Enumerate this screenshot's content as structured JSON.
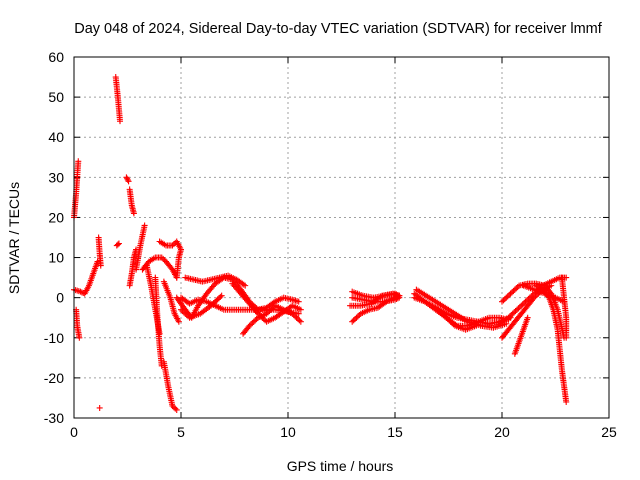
{
  "chart_data": {
    "type": "scatter",
    "title": "Day 048 of 2024, Sidereal Day-to-day VTEC variation (SDTVAR) for receiver lmmf",
    "xlabel": "GPS time / hours",
    "ylabel": "SDTVAR / TECUs",
    "xlim": [
      0,
      25
    ],
    "ylim": [
      -30,
      60
    ],
    "xticks": [
      0,
      5,
      10,
      15,
      20,
      25
    ],
    "yticks": [
      -30,
      -20,
      -10,
      0,
      10,
      20,
      30,
      40,
      50,
      60
    ],
    "grid": true,
    "marker": "+",
    "color": "#ff0000",
    "segments": [
      [
        [
          0.0,
          20
        ],
        [
          0.1,
          26
        ],
        [
          0.2,
          34
        ]
      ],
      [
        [
          0.0,
          2
        ],
        [
          0.3,
          1.5
        ],
        [
          0.5,
          1
        ],
        [
          0.7,
          3
        ],
        [
          0.9,
          6
        ],
        [
          1.1,
          9
        ]
      ],
      [
        [
          0.1,
          -3
        ],
        [
          0.15,
          -7
        ],
        [
          0.25,
          -10
        ]
      ],
      [
        [
          1.15,
          15
        ],
        [
          1.2,
          11
        ],
        [
          1.25,
          8
        ]
      ],
      [
        [
          1.2,
          -27.5
        ]
      ],
      [
        [
          1.95,
          55
        ],
        [
          2.05,
          50
        ],
        [
          2.15,
          44
        ]
      ],
      [
        [
          2.0,
          13
        ],
        [
          2.1,
          13.5
        ]
      ],
      [
        [
          2.45,
          30
        ],
        [
          2.55,
          29
        ]
      ],
      [
        [
          2.6,
          27
        ],
        [
          2.7,
          23
        ],
        [
          2.8,
          21
        ]
      ],
      [
        [
          2.6,
          3
        ],
        [
          2.7,
          6
        ],
        [
          2.8,
          10
        ],
        [
          2.9,
          12
        ]
      ],
      [
        [
          2.9,
          7
        ],
        [
          3.1,
          13
        ],
        [
          3.3,
          18
        ]
      ],
      [
        [
          3.2,
          7
        ],
        [
          3.5,
          9
        ],
        [
          3.8,
          10
        ],
        [
          4.1,
          10
        ],
        [
          4.3,
          9
        ],
        [
          4.6,
          7
        ],
        [
          4.8,
          5
        ]
      ],
      [
        [
          3.8,
          5
        ],
        [
          3.9,
          -5
        ],
        [
          4.0,
          -12
        ],
        [
          4.1,
          -17
        ]
      ],
      [
        [
          4.2,
          -16
        ],
        [
          4.4,
          -22
        ],
        [
          4.6,
          -27
        ],
        [
          4.8,
          -28
        ]
      ],
      [
        [
          3.4,
          8
        ],
        [
          3.6,
          3
        ],
        [
          3.8,
          -3
        ],
        [
          4.0,
          -9
        ]
      ],
      [
        [
          4.2,
          4
        ],
        [
          4.5,
          0
        ],
        [
          4.7,
          -4
        ],
        [
          4.9,
          -6
        ]
      ],
      [
        [
          4.0,
          14
        ],
        [
          4.3,
          13
        ],
        [
          4.6,
          13
        ],
        [
          4.8,
          14
        ],
        [
          5.0,
          12
        ],
        [
          4.9,
          10
        ],
        [
          4.8,
          5
        ]
      ],
      [
        [
          4.8,
          0
        ],
        [
          5.2,
          -3
        ],
        [
          5.5,
          -5
        ],
        [
          5.8,
          -2
        ],
        [
          6.2,
          1
        ],
        [
          6.6,
          3.5
        ],
        [
          7.0,
          5
        ],
        [
          7.4,
          4.5
        ],
        [
          7.8,
          2
        ],
        [
          8.2,
          -1
        ],
        [
          8.6,
          -3
        ],
        [
          9.0,
          -2.5
        ],
        [
          9.4,
          -1
        ],
        [
          9.8,
          0
        ],
        [
          10.2,
          -0.5
        ],
        [
          10.5,
          -1
        ]
      ],
      [
        [
          5.0,
          0
        ],
        [
          5.4,
          -1.5
        ],
        [
          5.8,
          -0.5
        ],
        [
          6.2,
          -1
        ],
        [
          6.6,
          -2
        ],
        [
          7.0,
          -3
        ],
        [
          7.6,
          -3
        ],
        [
          8.2,
          -3
        ],
        [
          8.8,
          -3
        ],
        [
          9.4,
          -3
        ],
        [
          10.0,
          -3.5
        ],
        [
          10.5,
          -4
        ]
      ],
      [
        [
          5.2,
          5
        ],
        [
          5.6,
          4.5
        ],
        [
          6.0,
          4
        ],
        [
          6.4,
          4.5
        ],
        [
          6.8,
          5
        ],
        [
          7.2,
          5.5
        ],
        [
          7.6,
          4.5
        ],
        [
          8.0,
          3
        ]
      ],
      [
        [
          5.0,
          -3
        ],
        [
          5.4,
          -5
        ],
        [
          5.9,
          -4
        ],
        [
          6.4,
          -2
        ],
        [
          6.9,
          0.5
        ]
      ],
      [
        [
          7.4,
          3.5
        ],
        [
          7.8,
          1
        ],
        [
          8.2,
          -1.5
        ],
        [
          8.6,
          -4
        ],
        [
          9.0,
          -6
        ],
        [
          9.4,
          -5
        ],
        [
          9.8,
          -3.5
        ],
        [
          10.2,
          -2
        ],
        [
          10.6,
          -3
        ]
      ],
      [
        [
          7.9,
          -9
        ],
        [
          8.2,
          -7
        ],
        [
          8.6,
          -5
        ],
        [
          9.0,
          -4
        ],
        [
          9.4,
          -2
        ],
        [
          9.8,
          -3
        ],
        [
          10.2,
          -4
        ],
        [
          10.6,
          -6
        ]
      ],
      [
        [
          13.0,
          -6
        ],
        [
          13.4,
          -4
        ],
        [
          13.8,
          -3
        ],
        [
          14.2,
          -2.5
        ],
        [
          14.6,
          -1
        ],
        [
          15.0,
          0
        ],
        [
          15.2,
          0.5
        ]
      ],
      [
        [
          13.0,
          0
        ],
        [
          13.5,
          -0.5
        ],
        [
          14.0,
          -1
        ],
        [
          14.5,
          -1
        ],
        [
          15.0,
          -0.5
        ],
        [
          15.2,
          0
        ]
      ],
      [
        [
          13.0,
          1.5
        ],
        [
          13.5,
          0.5
        ],
        [
          14.0,
          0
        ],
        [
          14.5,
          0.5
        ],
        [
          15.0,
          1
        ],
        [
          15.2,
          0.5
        ]
      ],
      [
        [
          12.9,
          -2
        ],
        [
          13.4,
          -2
        ],
        [
          13.9,
          -1.5
        ],
        [
          14.4,
          0.5
        ],
        [
          14.9,
          1
        ],
        [
          15.1,
          0.5
        ]
      ],
      [
        [
          15.9,
          1
        ],
        [
          16.4,
          -1
        ],
        [
          16.9,
          -3
        ],
        [
          17.4,
          -5
        ],
        [
          17.9,
          -7
        ],
        [
          18.4,
          -7
        ],
        [
          18.9,
          -6
        ],
        [
          19.4,
          -5
        ],
        [
          19.9,
          -5
        ],
        [
          20.3,
          -5.5
        ]
      ],
      [
        [
          15.9,
          0
        ],
        [
          16.4,
          -1
        ],
        [
          16.9,
          -2.5
        ],
        [
          17.4,
          -4
        ],
        [
          17.9,
          -5
        ],
        [
          18.4,
          -5.5
        ],
        [
          18.9,
          -6
        ],
        [
          19.4,
          -6.5
        ],
        [
          19.9,
          -6
        ],
        [
          20.4,
          -5
        ]
      ],
      [
        [
          16.0,
          2
        ],
        [
          16.6,
          0
        ],
        [
          17.2,
          -2
        ],
        [
          17.8,
          -4
        ],
        [
          18.4,
          -6
        ],
        [
          19.0,
          -7
        ],
        [
          19.6,
          -7.5
        ],
        [
          20.2,
          -6.5
        ]
      ],
      [
        [
          17.0,
          -3
        ],
        [
          17.4,
          -5
        ],
        [
          17.8,
          -7
        ],
        [
          18.3,
          -8
        ],
        [
          18.8,
          -7
        ]
      ],
      [
        [
          20.0,
          -10
        ],
        [
          20.3,
          -8
        ],
        [
          20.6,
          -6
        ],
        [
          20.9,
          -4
        ],
        [
          21.2,
          -2
        ],
        [
          21.5,
          0
        ],
        [
          21.9,
          2
        ],
        [
          22.3,
          3
        ]
      ],
      [
        [
          19.9,
          -6
        ],
        [
          20.3,
          -5
        ],
        [
          20.7,
          -3
        ],
        [
          21.1,
          -1
        ],
        [
          21.5,
          1
        ],
        [
          21.9,
          3
        ],
        [
          22.3,
          4
        ],
        [
          22.7,
          5
        ],
        [
          23.0,
          5
        ]
      ],
      [
        [
          20.0,
          -1
        ],
        [
          20.4,
          1
        ],
        [
          20.8,
          3
        ],
        [
          21.2,
          3.5
        ],
        [
          21.6,
          3.5
        ],
        [
          22.0,
          3
        ],
        [
          22.3,
          1
        ],
        [
          22.6,
          -3
        ],
        [
          22.9,
          -10
        ]
      ],
      [
        [
          21.6,
          3
        ],
        [
          21.9,
          2
        ],
        [
          22.2,
          0
        ],
        [
          22.4,
          -3
        ],
        [
          22.6,
          -8
        ],
        [
          22.7,
          -13
        ],
        [
          22.8,
          -18
        ],
        [
          22.9,
          -22
        ],
        [
          23.0,
          -26
        ]
      ],
      [
        [
          20.6,
          -14
        ],
        [
          20.8,
          -11
        ],
        [
          21.0,
          -8
        ],
        [
          21.2,
          -5
        ]
      ],
      [
        [
          22.8,
          5
        ],
        [
          22.9,
          0
        ],
        [
          23.0,
          -5
        ],
        [
          23.0,
          -10
        ]
      ],
      [
        [
          21.0,
          3
        ],
        [
          21.5,
          2
        ],
        [
          22.0,
          1
        ],
        [
          22.5,
          0
        ],
        [
          22.9,
          -1
        ]
      ]
    ]
  }
}
